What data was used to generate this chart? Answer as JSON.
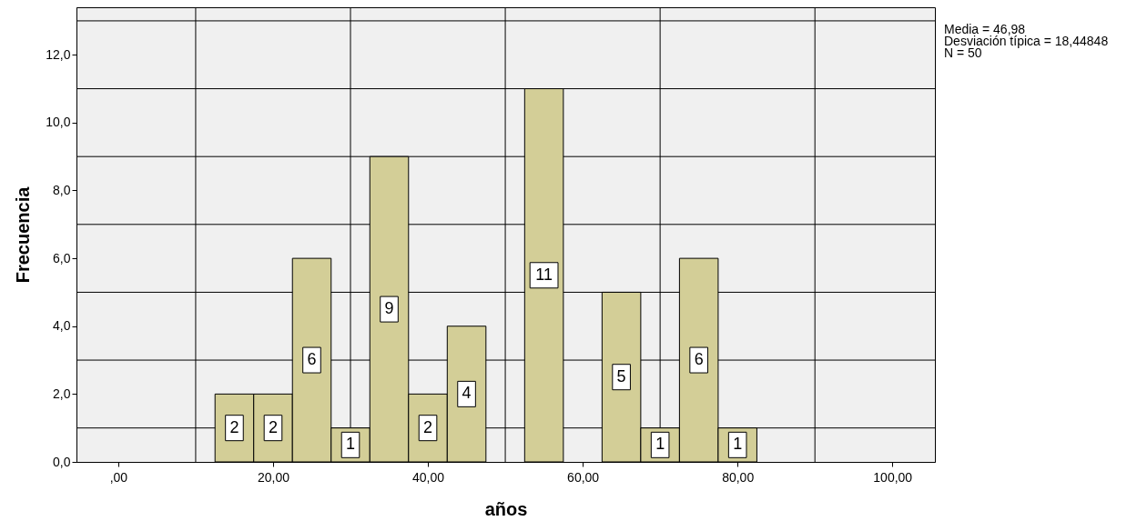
{
  "chart_data": {
    "type": "histogram",
    "xlabel": "años",
    "ylabel": "Frecuencia",
    "bins": [
      12.5,
      17.5,
      22.5,
      27.5,
      32.5,
      37.5,
      42.5,
      47.5,
      52.5,
      57.5,
      62.5,
      67.5,
      72.5,
      77.5,
      82.5
    ],
    "values": [
      2,
      2,
      6,
      1,
      9,
      2,
      4,
      0,
      11,
      0,
      5,
      1,
      6,
      1
    ],
    "value_labels": [
      "2",
      "2",
      "6",
      "1",
      "9",
      "2",
      "4",
      null,
      "11",
      null,
      "5",
      "1",
      "6",
      "1"
    ],
    "color": "#d3ce97",
    "xlim": [
      -5.4,
      105.5
    ],
    "ylim": [
      0,
      13.4
    ],
    "xticks": [
      {
        "value": 0,
        "label": ",00"
      },
      {
        "value": 20,
        "label": "20,00"
      },
      {
        "value": 40,
        "label": "40,00"
      },
      {
        "value": 60,
        "label": "60,00"
      },
      {
        "value": 80,
        "label": "80,00"
      },
      {
        "value": 100,
        "label": "100,00"
      }
    ],
    "yticks": [
      {
        "value": 0,
        "label": "0,0"
      },
      {
        "value": 2,
        "label": "2,0"
      },
      {
        "value": 4,
        "label": "4,0"
      },
      {
        "value": 6,
        "label": "6,0"
      },
      {
        "value": 8,
        "label": "8,0"
      },
      {
        "value": 10,
        "label": "10,0"
      },
      {
        "value": 12,
        "label": "12,0"
      }
    ],
    "grid": true,
    "annotations": [
      "Media = 46,98",
      "Desviación típica = 18,44848",
      "N = 50"
    ]
  }
}
